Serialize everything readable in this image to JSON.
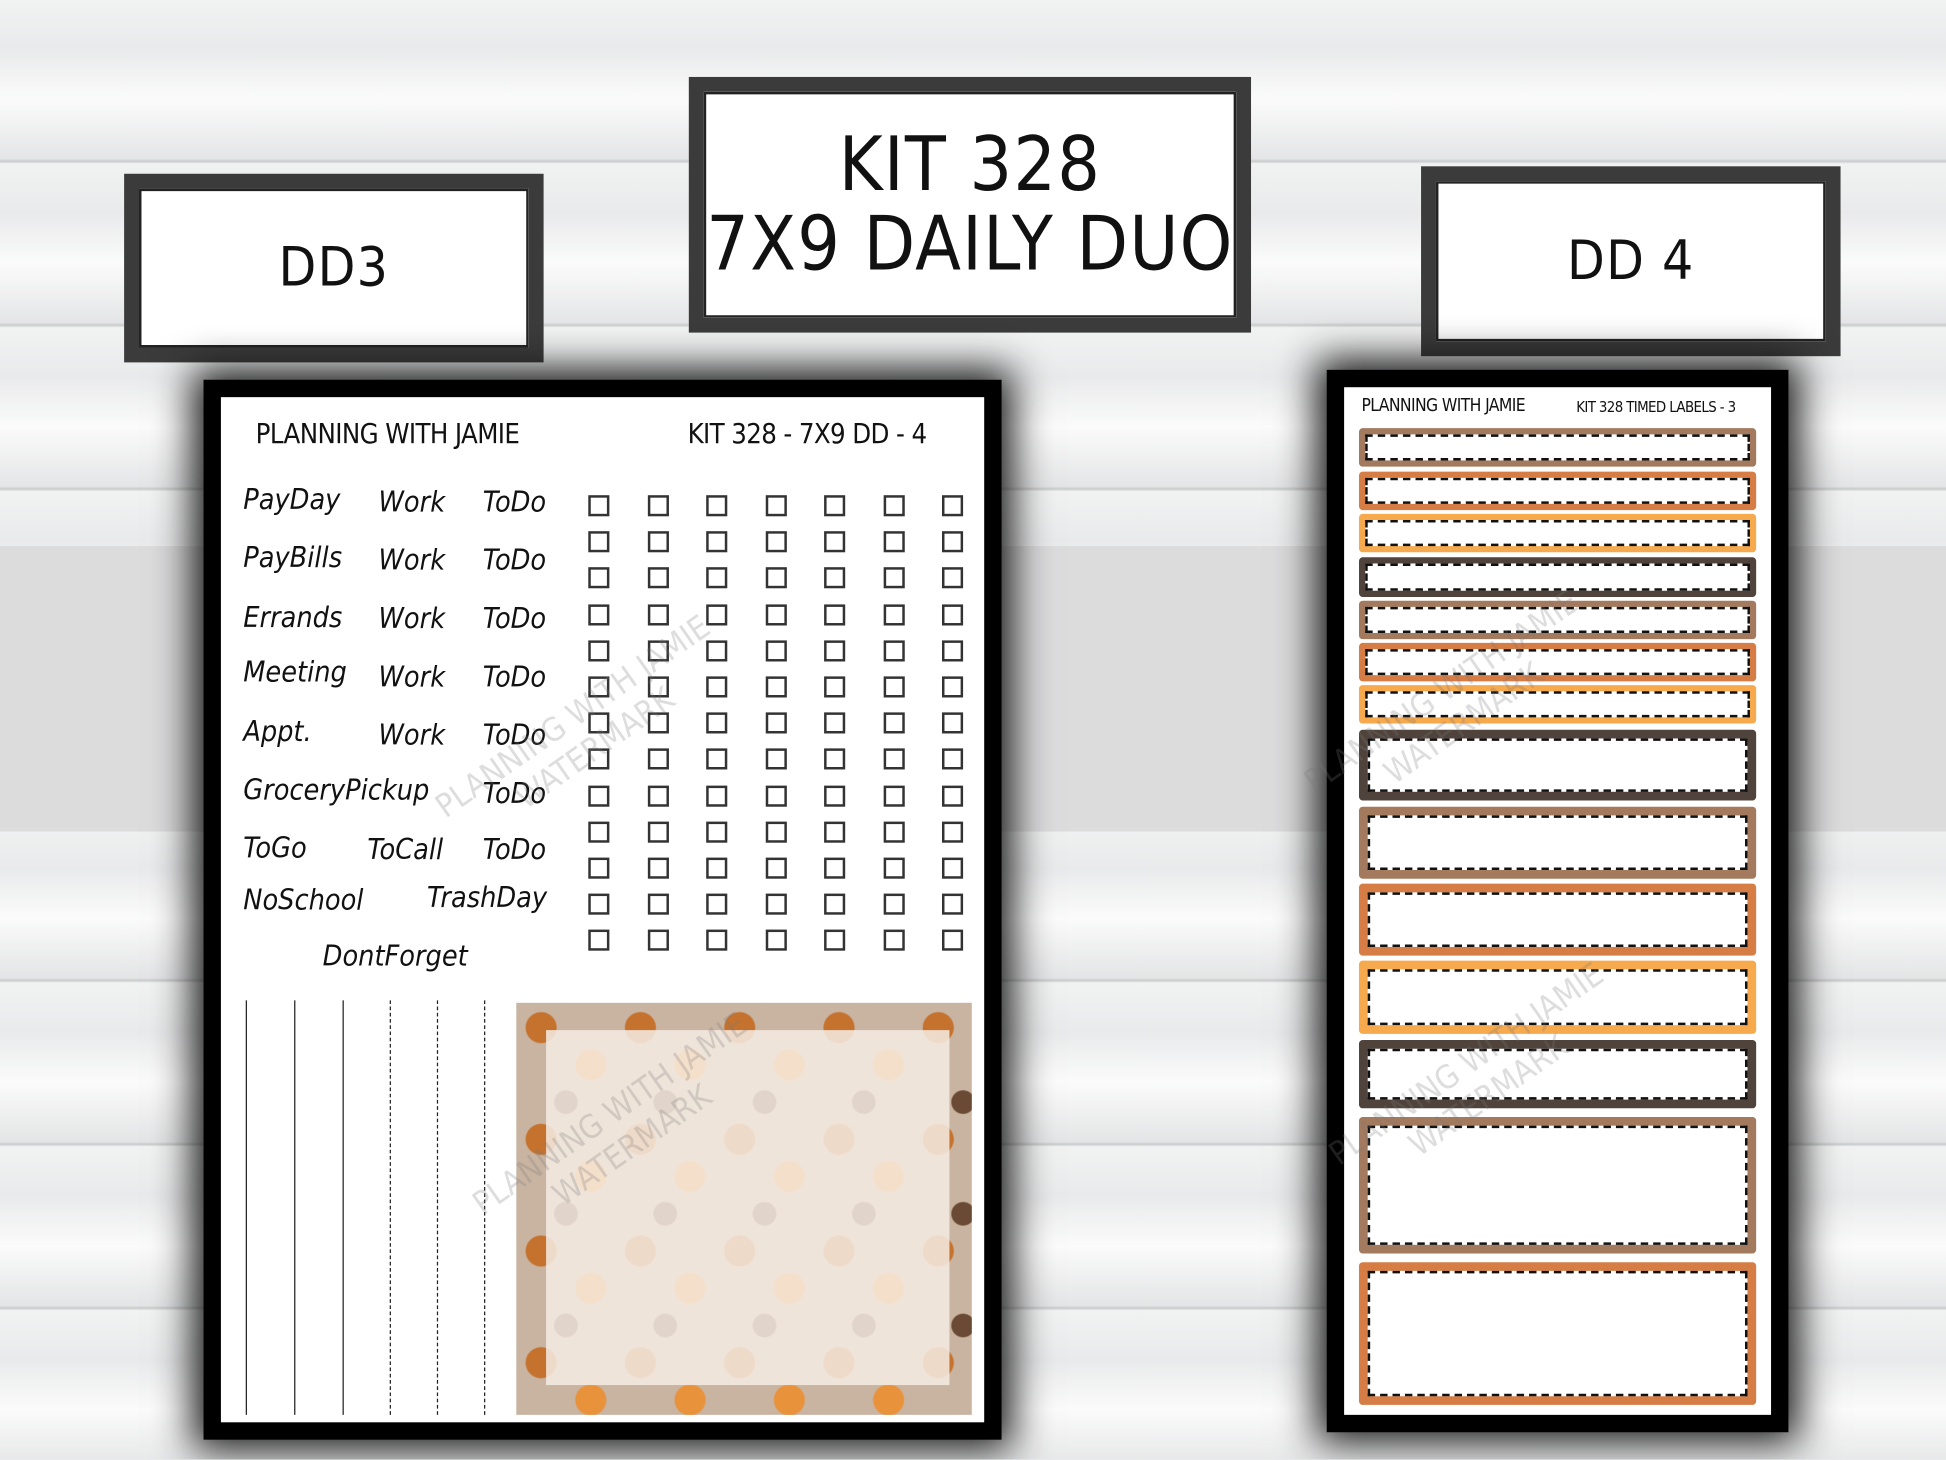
{
  "tags": {
    "left": "DD3",
    "center_line1": "KIT 328",
    "center_line2": "7X9 DAILY DUO",
    "right": "DD 4"
  },
  "left_sheet": {
    "brand": "PLANNING WITH JAMIE",
    "code": "KIT 328 - 7X9 DD - 4",
    "labels": [
      "PayDay",
      "Work",
      "ToDo",
      "PayBills",
      "Work",
      "ToDo",
      "Errands",
      "Work",
      "ToDo",
      "Meeting",
      "Work",
      "ToDo",
      "Appt.",
      "Work",
      "ToDo",
      "GroceryPickup",
      "ToDo",
      "ToGo",
      "ToCall",
      "ToDo",
      "NoSchool",
      "TrashDay",
      "DontForget"
    ],
    "checkbox_columns": 7,
    "checkbox_rows": 13
  },
  "right_sheet": {
    "brand": "PLANNING WITH JAMIE",
    "code": "KIT 328 TIMED LABELS - 3",
    "colors": {
      "brown": "#a47a5e",
      "orange": "#d67d45",
      "yellow": "#f6a94d",
      "dark": "#4f433b"
    }
  },
  "watermark": "PLANNING WITH JAMIE WATERMARK"
}
